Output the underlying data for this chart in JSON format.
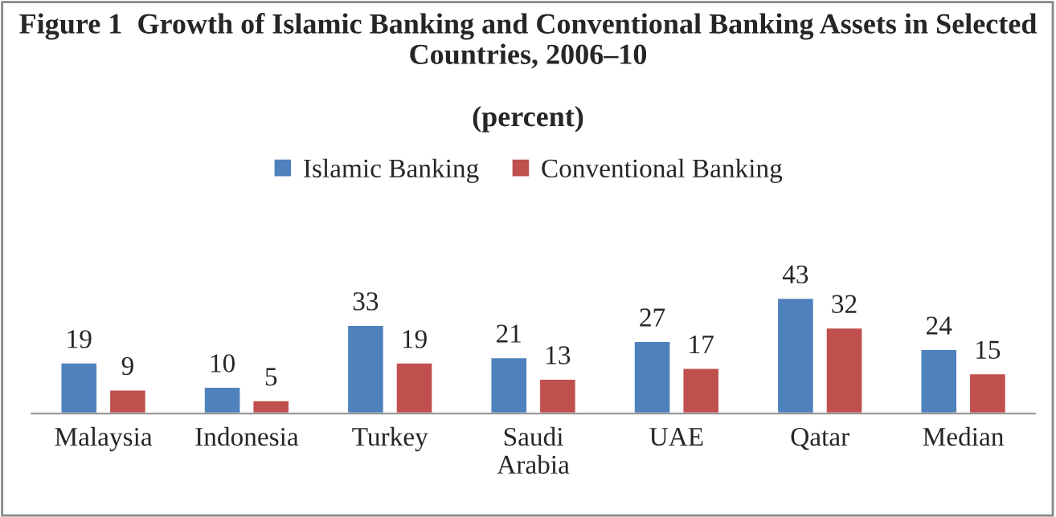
{
  "chart_data": {
    "type": "bar",
    "title": "Figure 1  Growth of Islamic Banking and Conventional Banking Assets in Selected Countries, 2006–10",
    "subtitle": "(percent)",
    "categories": [
      "Malaysia",
      "Indonesia",
      "Turkey",
      "Saudi Arabia",
      "UAE",
      "Qatar",
      "Median"
    ],
    "series": [
      {
        "name": "Islamic Banking",
        "color": "#4f81bd",
        "values": [
          19,
          10,
          33,
          21,
          27,
          43,
          24
        ]
      },
      {
        "name": "Conventional Banking",
        "color": "#c0504d",
        "values": [
          9,
          5,
          19,
          13,
          17,
          32,
          15
        ]
      }
    ],
    "data_labels": true,
    "legend": "top",
    "grid": false
  }
}
